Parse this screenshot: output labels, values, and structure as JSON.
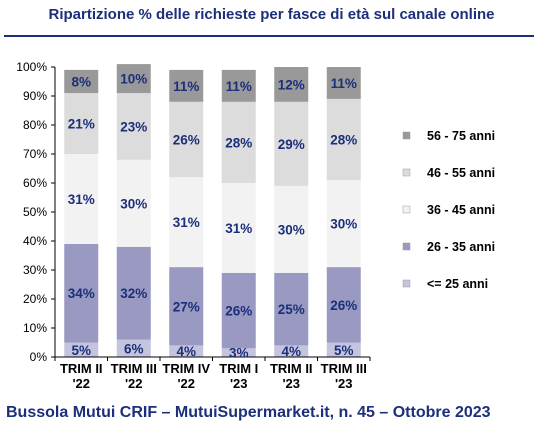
{
  "page": {
    "title": "Ripartizione % delle richieste per fasce di età sul canale online",
    "footer": "Bussola Mutui CRIF – MutuiSupermarket.it, n. 45 – Ottobre 2023"
  },
  "chart_data": {
    "type": "bar",
    "stacked": true,
    "categories": [
      [
        "TRIM II",
        "'22"
      ],
      [
        "TRIM III",
        "'22"
      ],
      [
        "TRIM IV",
        "'22"
      ],
      [
        "TRIM I",
        "'23"
      ],
      [
        "TRIM II",
        "'23"
      ],
      [
        "TRIM III",
        "'23"
      ]
    ],
    "series": [
      {
        "name": "<= 25 anni",
        "color": "#c4c4de",
        "values": [
          5,
          6,
          4,
          3,
          4,
          5
        ]
      },
      {
        "name": "26 - 35 anni",
        "color": "#9999c2",
        "values": [
          34,
          32,
          27,
          26,
          25,
          26
        ]
      },
      {
        "name": "36 - 45 anni",
        "color": "#f2f2f2",
        "values": [
          31,
          30,
          31,
          31,
          30,
          30
        ]
      },
      {
        "name": "46 - 55 anni",
        "color": "#dcdcdc",
        "values": [
          21,
          23,
          26,
          28,
          29,
          28
        ]
      },
      {
        "name": "56 - 75 anni",
        "color": "#999999",
        "values": [
          8,
          10,
          11,
          11,
          12,
          11
        ]
      }
    ],
    "ylim": [
      0,
      100
    ],
    "yticks": [
      "0%",
      "10%",
      "20%",
      "30%",
      "40%",
      "50%",
      "60%",
      "70%",
      "80%",
      "90%",
      "100%"
    ],
    "legend_position": "right",
    "grid": false
  }
}
